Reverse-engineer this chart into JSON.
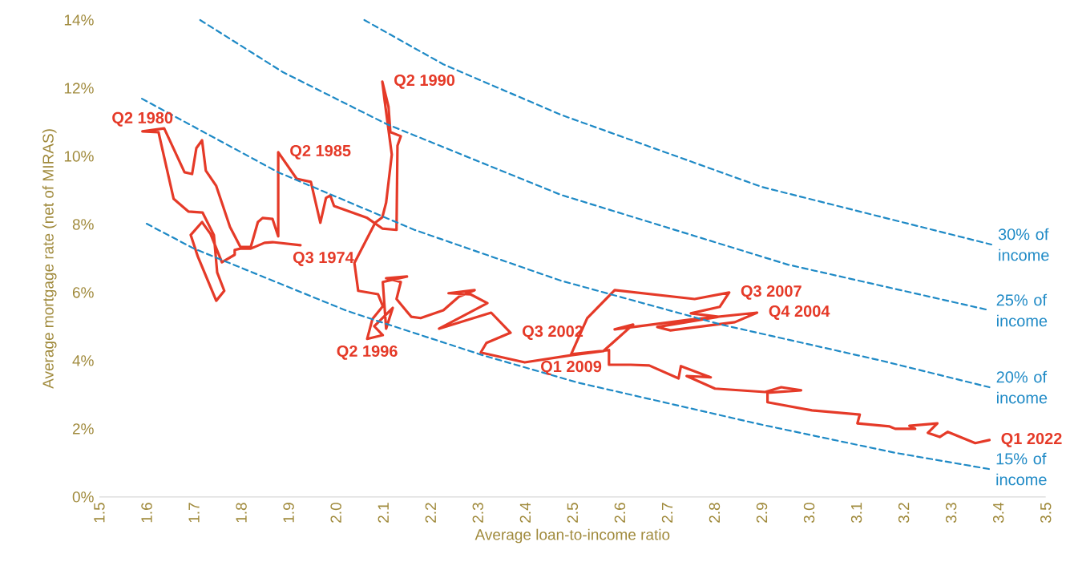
{
  "chart_data": {
    "type": "line",
    "xlabel": "Average loan-to-income ratio",
    "ylabel": "Average mortgage rate (net of MIRAS)",
    "xlim": [
      1.5,
      3.5
    ],
    "xticks": [
      1.5,
      1.6,
      1.7,
      1.8,
      1.9,
      {
        "value": 2,
        "label": "2.0"
      },
      2.1,
      2.2,
      2.3,
      2.4,
      2.5,
      2.6,
      2.7,
      2.8,
      2.9,
      {
        "value": 3,
        "label": "3.0"
      },
      3.1,
      3.2,
      3.3,
      3.4,
      3.5
    ],
    "ylim": [
      0,
      14
    ],
    "yticks": [
      {
        "value": 0,
        "label": "0%"
      },
      {
        "value": 2,
        "label": "2%"
      },
      {
        "value": 4,
        "label": "4%"
      },
      {
        "value": 6,
        "label": "6%"
      },
      {
        "value": 8,
        "label": "8%"
      },
      {
        "value": 10,
        "label": "10%"
      },
      {
        "value": 12,
        "label": "12%"
      },
      {
        "value": 14,
        "label": "14%"
      }
    ],
    "marker": "none",
    "series": [
      {
        "color": "#e53a28",
        "line_style": "solid",
        "x": [
          1.925,
          1.866,
          1.849,
          1.82,
          1.798,
          1.786,
          1.786,
          1.759,
          1.735,
          1.717,
          1.693,
          1.708,
          1.747,
          1.764,
          1.749,
          1.742,
          1.718,
          1.688,
          1.657,
          1.625,
          1.591,
          1.637,
          1.68,
          1.696,
          1.705,
          1.717,
          1.725,
          1.747,
          1.776,
          1.798,
          1.82,
          1.835,
          1.845,
          1.866,
          1.878,
          1.878,
          1.917,
          1.947,
          1.967,
          1.979,
          1.988,
          1.996,
          2.066,
          2.098,
          2.128,
          2.13,
          2.137,
          2.115,
          2.111,
          2.098,
          2.103,
          2.118,
          2.106,
          2.098,
          2.083,
          2.039,
          2.047,
          2.089,
          2.099,
          2.077,
          2.066,
          2.099,
          2.081,
          2.12,
          2.106,
          2.099,
          2.15,
          2.106,
          2.137,
          2.128,
          2.159,
          2.179,
          2.227,
          2.26,
          2.293,
          2.238,
          2.284,
          2.32,
          2.218,
          2.328,
          2.369,
          2.318,
          2.306,
          2.399,
          2.497,
          2.565,
          2.628,
          2.589,
          2.746,
          2.89,
          2.843,
          2.707,
          2.679,
          2.809,
          2.75,
          2.811,
          2.831,
          2.758,
          2.589,
          2.531,
          2.497,
          2.577,
          2.577,
          2.623,
          2.662,
          2.724,
          2.729,
          2.792,
          2.741,
          2.801,
          2.907,
          2.941,
          2.983,
          2.912,
          2.912,
          3.006,
          3.107,
          3.102,
          3.17,
          3.182,
          3.224,
          3.212,
          3.271,
          3.251,
          3.276,
          3.293,
          3.351,
          3.381
        ],
        "values": [
          7.39,
          7.48,
          7.46,
          7.29,
          7.29,
          7.25,
          7.11,
          6.89,
          7.72,
          8.07,
          7.69,
          7.06,
          5.76,
          6.05,
          6.59,
          7.69,
          8.35,
          8.38,
          8.75,
          10.71,
          10.73,
          10.82,
          9.53,
          9.48,
          10.24,
          10.47,
          9.58,
          9.13,
          7.93,
          7.34,
          7.34,
          8.07,
          8.19,
          8.16,
          7.65,
          10.12,
          9.34,
          9.25,
          8.05,
          8.78,
          8.85,
          8.54,
          8.19,
          7.88,
          7.84,
          10.31,
          10.59,
          10.71,
          11.46,
          12.19,
          11.62,
          10.05,
          8.64,
          8.21,
          8.05,
          6.87,
          6.05,
          5.95,
          5.6,
          5.22,
          4.64,
          4.75,
          5.01,
          5.55,
          4.94,
          6.31,
          6.47,
          6.42,
          6.31,
          5.81,
          5.29,
          5.25,
          5.48,
          5.88,
          6.07,
          5.98,
          5.95,
          5.69,
          4.94,
          5.41,
          4.82,
          4.52,
          4.24,
          3.95,
          4.16,
          4.28,
          5.06,
          4.92,
          5.2,
          5.41,
          5.13,
          4.89,
          4.99,
          5.29,
          5.39,
          5.58,
          6.0,
          5.81,
          6.07,
          5.25,
          4.19,
          4.31,
          3.88,
          3.88,
          3.86,
          3.48,
          3.84,
          3.51,
          3.55,
          3.18,
          3.08,
          3.22,
          3.13,
          3.06,
          2.78,
          2.54,
          2.42,
          2.16,
          2.07,
          2.0,
          2.0,
          2.09,
          2.16,
          1.88,
          1.76,
          1.91,
          1.58,
          1.67
        ]
      },
      {
        "name": "30% of income",
        "color": "#1f8ac6",
        "line_style": "dashed",
        "x": [
          2.06,
          2.227,
          2.475,
          2.9,
          3.385
        ],
        "values": [
          14.0,
          12.7,
          11.22,
          9.1,
          7.41
        ]
      },
      {
        "name": "25% of income",
        "color": "#1f8ac6",
        "line_style": "dashed",
        "x": [
          1.713,
          1.888,
          2.108,
          2.475,
          2.955,
          3.381
        ],
        "values": [
          14.0,
          12.47,
          10.94,
          8.87,
          6.82,
          5.48
        ]
      },
      {
        "name": "20% of income",
        "color": "#1f8ac6",
        "line_style": "dashed",
        "x": [
          1.59,
          1.878,
          2.166,
          2.475,
          2.814,
          3.153,
          3.381
        ],
        "values": [
          11.69,
          9.53,
          7.84,
          6.35,
          5.06,
          4.0,
          3.22
        ]
      },
      {
        "name": "15% of income",
        "color": "#1f8ac6",
        "line_style": "dashed",
        "x": [
          1.6,
          1.7,
          2.02,
          2.08,
          2.31,
          2.51,
          2.9,
          3.18,
          3.38
        ],
        "values": [
          8.02,
          7.29,
          5.48,
          5.2,
          4.16,
          3.36,
          2.12,
          1.3,
          0.82
        ]
      }
    ],
    "annotations": [
      {
        "text": "Q3 1974",
        "x": 1.925,
        "y": 7.39
      },
      {
        "text": "Q2 1980",
        "x": 1.591,
        "y": 10.73
      },
      {
        "text": "Q2 1985",
        "x": 1.878,
        "y": 10.12
      },
      {
        "text": "Q2 1990",
        "x": 2.098,
        "y": 12.19
      },
      {
        "text": "Q2 1996",
        "x": 2.066,
        "y": 4.64
      },
      {
        "text": "Q3 2002",
        "x": 2.369,
        "y": 4.82
      },
      {
        "text": "Q4 2004",
        "x": 2.89,
        "y": 5.41
      },
      {
        "text": "Q3 2007",
        "x": 2.831,
        "y": 6.0
      },
      {
        "text": "Q1 2009",
        "x": 2.497,
        "y": 4.19
      },
      {
        "text": "Q1 2022",
        "x": 3.381,
        "y": 1.67
      }
    ]
  }
}
